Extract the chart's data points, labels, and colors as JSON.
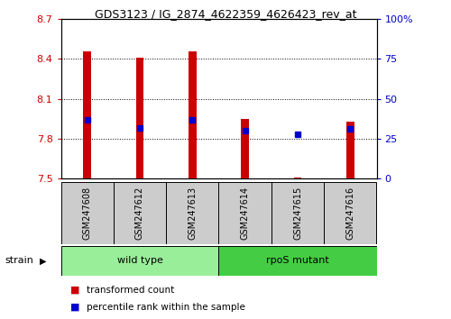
{
  "title": "GDS3123 / IG_2874_4622359_4626423_rev_at",
  "samples": [
    "GSM247608",
    "GSM247612",
    "GSM247613",
    "GSM247614",
    "GSM247615",
    "GSM247616"
  ],
  "transformed_count": [
    8.46,
    8.41,
    8.46,
    7.95,
    7.51,
    7.93
  ],
  "percentile_rank": [
    37,
    32,
    37,
    30,
    28,
    31
  ],
  "ylim": [
    7.5,
    8.7
  ],
  "y_ticks": [
    7.5,
    7.8,
    8.1,
    8.4,
    8.7
  ],
  "right_ylim": [
    0,
    100
  ],
  "right_yticks": [
    0,
    25,
    50,
    75,
    100
  ],
  "right_yticklabels": [
    "0",
    "25",
    "50",
    "75",
    "100%"
  ],
  "bar_color": "#cc0000",
  "dot_color": "#0000cc",
  "groups_info": [
    {
      "label": "wild type",
      "start": 0,
      "end": 2,
      "color": "#99ee99"
    },
    {
      "label": "rpoS mutant",
      "start": 3,
      "end": 5,
      "color": "#44cc44"
    }
  ],
  "strain_label": "strain",
  "legend_items": [
    {
      "color": "#cc0000",
      "label": "transformed count"
    },
    {
      "color": "#0000cc",
      "label": "percentile rank within the sample"
    }
  ],
  "background_color": "#ffffff",
  "tick_label_color_left": "#cc0000",
  "tick_label_color_right": "#0000cc",
  "bar_width": 0.15,
  "sample_box_color": "#cccccc"
}
